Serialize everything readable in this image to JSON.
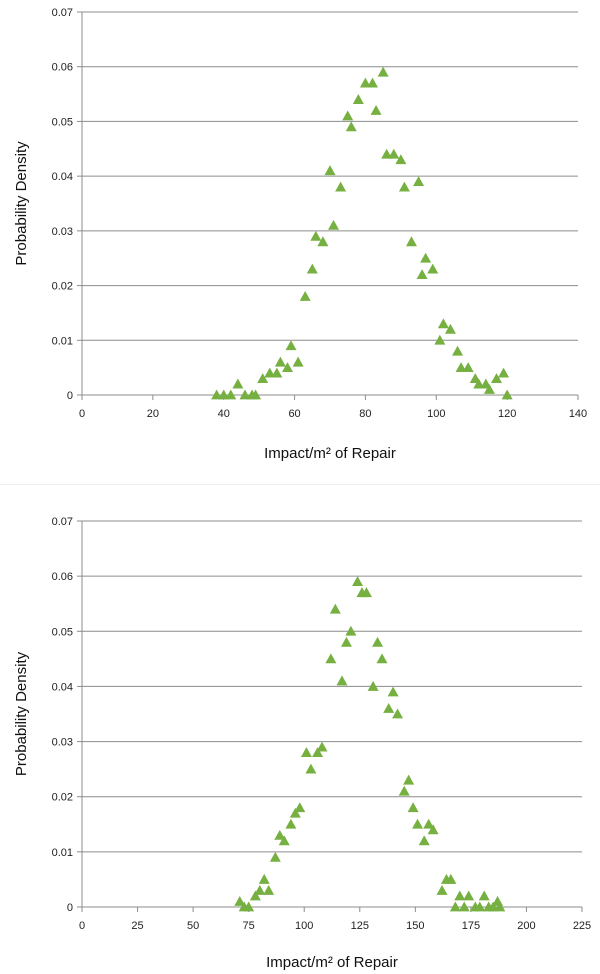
{
  "chart_data": [
    {
      "type": "scatter",
      "title": "",
      "xlabel": "Impact/m² of Repair",
      "ylabel": "Probability Density",
      "xlim": [
        0,
        140
      ],
      "ylim": [
        0,
        0.07
      ],
      "x_ticks": [
        0,
        20,
        40,
        60,
        80,
        100,
        120,
        140
      ],
      "y_ticks": [
        0,
        0.01,
        0.02,
        0.03,
        0.04,
        0.05,
        0.06,
        0.07
      ],
      "x_tick_labels": [
        "0",
        "20",
        "40",
        "60",
        "80",
        "100",
        "120",
        "140"
      ],
      "y_tick_labels": [
        "0",
        "0.01",
        "0.02",
        "0.03",
        "0.04",
        "0.05",
        "0.06",
        "0.07"
      ],
      "grid": "horizontal",
      "marker": "triangle",
      "color": "#76b041",
      "series": [
        {
          "points": [
            [
              38,
              0
            ],
            [
              40,
              0
            ],
            [
              42,
              0
            ],
            [
              44,
              0.002
            ],
            [
              46,
              0
            ],
            [
              48,
              0
            ],
            [
              49,
              0
            ],
            [
              51,
              0.003
            ],
            [
              53,
              0.004
            ],
            [
              55,
              0.004
            ],
            [
              56,
              0.006
            ],
            [
              58,
              0.005
            ],
            [
              59,
              0.009
            ],
            [
              61,
              0.006
            ],
            [
              63,
              0.018
            ],
            [
              65,
              0.023
            ],
            [
              66,
              0.029
            ],
            [
              68,
              0.028
            ],
            [
              70,
              0.041
            ],
            [
              71,
              0.031
            ],
            [
              73,
              0.038
            ],
            [
              75,
              0.051
            ],
            [
              76,
              0.049
            ],
            [
              78,
              0.054
            ],
            [
              80,
              0.057
            ],
            [
              82,
              0.057
            ],
            [
              83,
              0.052
            ],
            [
              85,
              0.059
            ],
            [
              86,
              0.044
            ],
            [
              88,
              0.044
            ],
            [
              90,
              0.043
            ],
            [
              91,
              0.038
            ],
            [
              93,
              0.028
            ],
            [
              95,
              0.039
            ],
            [
              96,
              0.022
            ],
            [
              97,
              0.025
            ],
            [
              99,
              0.023
            ],
            [
              101,
              0.01
            ],
            [
              102,
              0.013
            ],
            [
              104,
              0.012
            ],
            [
              106,
              0.008
            ],
            [
              107,
              0.005
            ],
            [
              109,
              0.005
            ],
            [
              111,
              0.003
            ],
            [
              112,
              0.002
            ],
            [
              114,
              0.002
            ],
            [
              115,
              0.001
            ],
            [
              117,
              0.003
            ],
            [
              119,
              0.004
            ],
            [
              120,
              0
            ]
          ]
        }
      ]
    },
    {
      "type": "scatter",
      "title": "",
      "xlabel": "Impact/m² of Repair",
      "ylabel": "Probability Density",
      "xlim": [
        0,
        225
      ],
      "ylim": [
        0,
        0.07
      ],
      "x_ticks": [
        0,
        25,
        50,
        75,
        100,
        125,
        150,
        175,
        200,
        225
      ],
      "y_ticks": [
        0,
        0.01,
        0.02,
        0.03,
        0.04,
        0.05,
        0.06,
        0.07
      ],
      "x_tick_labels": [
        "0",
        "25",
        "50",
        "75",
        "100",
        "125",
        "150",
        "175",
        "200",
        "225"
      ],
      "y_tick_labels": [
        "0",
        "0.01",
        "0.02",
        "0.03",
        "0.04",
        "0.05",
        "0.06",
        "0.07"
      ],
      "grid": "horizontal",
      "marker": "triangle",
      "color": "#76b041",
      "series": [
        {
          "points": [
            [
              71,
              0.001
            ],
            [
              73,
              0
            ],
            [
              75,
              0
            ],
            [
              78,
              0.002
            ],
            [
              80,
              0.003
            ],
            [
              82,
              0.005
            ],
            [
              84,
              0.003
            ],
            [
              87,
              0.009
            ],
            [
              89,
              0.013
            ],
            [
              91,
              0.012
            ],
            [
              94,
              0.015
            ],
            [
              96,
              0.017
            ],
            [
              98,
              0.018
            ],
            [
              101,
              0.028
            ],
            [
              103,
              0.025
            ],
            [
              106,
              0.028
            ],
            [
              108,
              0.029
            ],
            [
              112,
              0.045
            ],
            [
              114,
              0.054
            ],
            [
              117,
              0.041
            ],
            [
              119,
              0.048
            ],
            [
              121,
              0.05
            ],
            [
              124,
              0.059
            ],
            [
              126,
              0.057
            ],
            [
              128,
              0.057
            ],
            [
              131,
              0.04
            ],
            [
              133,
              0.048
            ],
            [
              135,
              0.045
            ],
            [
              138,
              0.036
            ],
            [
              140,
              0.039
            ],
            [
              142,
              0.035
            ],
            [
              145,
              0.021
            ],
            [
              147,
              0.023
            ],
            [
              149,
              0.018
            ],
            [
              151,
              0.015
            ],
            [
              154,
              0.012
            ],
            [
              156,
              0.015
            ],
            [
              158,
              0.014
            ],
            [
              162,
              0.003
            ],
            [
              164,
              0.005
            ],
            [
              166,
              0.005
            ],
            [
              168,
              0
            ],
            [
              170,
              0.002
            ],
            [
              172,
              0
            ],
            [
              174,
              0.002
            ],
            [
              177,
              0
            ],
            [
              179,
              0
            ],
            [
              181,
              0.002
            ],
            [
              183,
              0
            ],
            [
              185,
              0
            ],
            [
              187,
              0.001
            ],
            [
              188,
              0
            ]
          ]
        }
      ]
    }
  ]
}
